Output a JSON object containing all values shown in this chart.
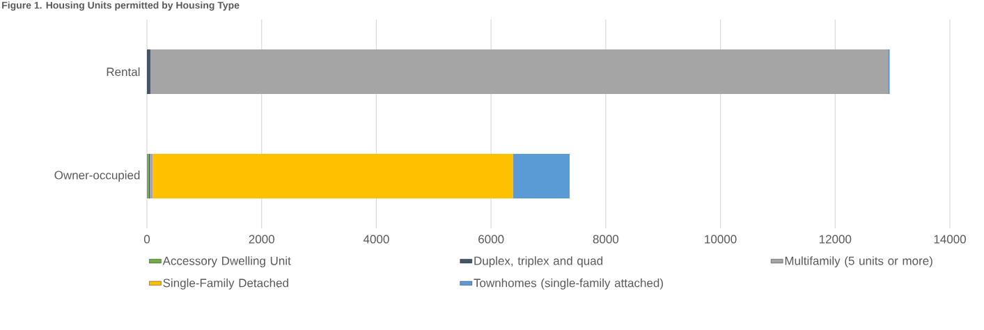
{
  "chart_data": {
    "type": "bar",
    "orientation": "horizontal",
    "stacked": true,
    "title": "Figure 1. Housing Units permitted by Housing Type",
    "categories": [
      "Rental",
      "Owner-occupied"
    ],
    "series": [
      {
        "name": "Accessory Dwelling Unit",
        "color": "#70ad47",
        "values": [
          0,
          30
        ]
      },
      {
        "name": "Duplex, triplex and quad",
        "color": "#44546a",
        "values": [
          60,
          20
        ]
      },
      {
        "name": "Multifamily (5 units or more)",
        "color": "#a5a5a5",
        "values": [
          12860,
          50
        ]
      },
      {
        "name": "Single-Family Detached",
        "color": "#ffc000",
        "values": [
          0,
          6280
        ]
      },
      {
        "name": "Townhomes (single-family attached)",
        "color": "#5b9bd5",
        "values": [
          30,
          990
        ]
      }
    ],
    "xlim": [
      0,
      14000
    ],
    "xticks": [
      0,
      2000,
      4000,
      6000,
      8000,
      10000,
      12000,
      14000
    ],
    "grid": "x",
    "legend": "bottom"
  }
}
